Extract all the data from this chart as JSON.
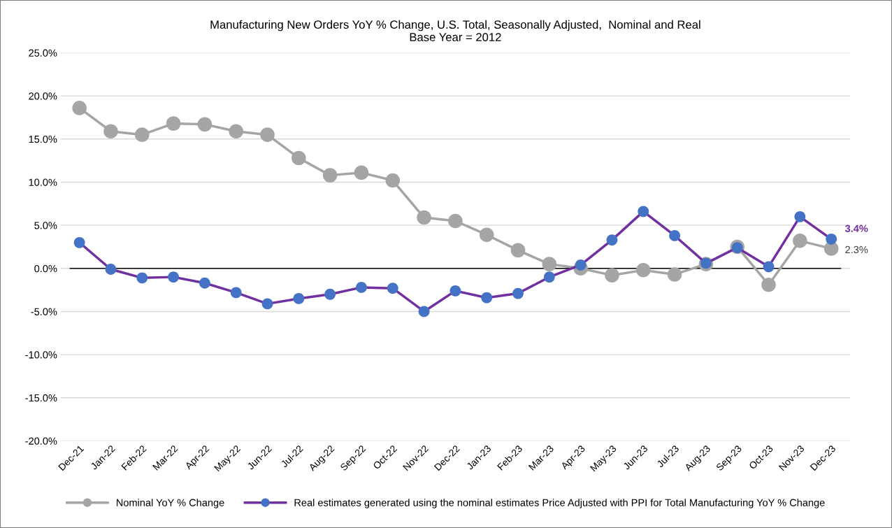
{
  "chart_data": {
    "type": "line",
    "title": "Manufacturing New Orders YoY % Change, U.S. Total, Seasonally Adjusted,  Nominal and Real\nBase Year = 2012",
    "categories": [
      "Dec-21",
      "Jan-22",
      "Feb-22",
      "Mar-22",
      "Apr-22",
      "May-22",
      "Jun-22",
      "Jul-22",
      "Aug-22",
      "Sep-22",
      "Oct-22",
      "Nov-22",
      "Dec-22",
      "Jan-23",
      "Feb-23",
      "Mar-23",
      "Apr-23",
      "May-23",
      "Jun-23",
      "Jul-23",
      "Aug-23",
      "Sep-23",
      "Oct-23",
      "Nov-23",
      "Dec-23"
    ],
    "series": [
      {
        "name": "Nominal YoY % Change",
        "color": "#a5a5a5",
        "values": [
          18.6,
          15.9,
          15.5,
          16.8,
          16.7,
          15.9,
          15.5,
          12.8,
          10.8,
          11.1,
          10.2,
          5.9,
          5.5,
          3.9,
          2.1,
          0.5,
          0.0,
          -0.8,
          -0.2,
          -0.7,
          0.5,
          2.5,
          -1.9,
          3.2,
          2.3
        ]
      },
      {
        "name": "Real estimates generated using the nominal estimates Price Adjusted with PPI for Total Manufacturing YoY % Change",
        "color": "#7030a0",
        "colors": [
          "#4472c4",
          "#4472c4",
          "#4472c4",
          "#4472c4",
          "#4472c4",
          "#4472c4",
          "#4472c4",
          "#4472c4",
          "#4472c4",
          "#4472c4",
          "#4472c4",
          "#4472c4",
          "#4472c4",
          "#4472c4",
          "#4472c4",
          "#4472c4",
          "#4472c4",
          "#4472c4",
          "#4472c4",
          "#4472c4",
          "#4472c4",
          "#4472c4",
          "#4472c4",
          "#4472c4",
          "#4472c4"
        ],
        "values": [
          3.0,
          -0.1,
          -1.1,
          -1.0,
          -1.7,
          -2.8,
          -4.1,
          -3.5,
          -3.0,
          -2.2,
          -2.3,
          -5.0,
          -2.6,
          -3.4,
          -2.9,
          -1.0,
          0.4,
          3.3,
          6.6,
          3.8,
          0.6,
          2.4,
          0.2,
          6.0,
          3.4
        ]
      }
    ],
    "ylim": [
      -20,
      25
    ],
    "yticks": [
      {
        "value": -20,
        "label": "-20.0%"
      },
      {
        "value": -15,
        "label": "-15.0%"
      },
      {
        "value": -10,
        "label": "-10.0%"
      },
      {
        "value": -5,
        "label": "-5.0%"
      },
      {
        "value": 0,
        "label": "0.0%"
      },
      {
        "value": 5,
        "label": "5.0%"
      },
      {
        "value": 10,
        "label": "10.0%"
      },
      {
        "value": 15,
        "label": "15.0%"
      },
      {
        "value": 20,
        "label": "20.0%"
      },
      {
        "value": 25,
        "label": "25.0%"
      }
    ],
    "ref_lines": [
      {
        "axis": "y",
        "value": 0,
        "color": "#000000"
      }
    ],
    "annotations": [
      {
        "text": "3.4%",
        "x": "Dec-23",
        "y": 3.4
      },
      {
        "text": "2.3%",
        "x": "Dec-23",
        "y": 2.3
      }
    ],
    "grid": "y",
    "legend": "bottom",
    "marker": "circle",
    "line_style": "solid"
  }
}
